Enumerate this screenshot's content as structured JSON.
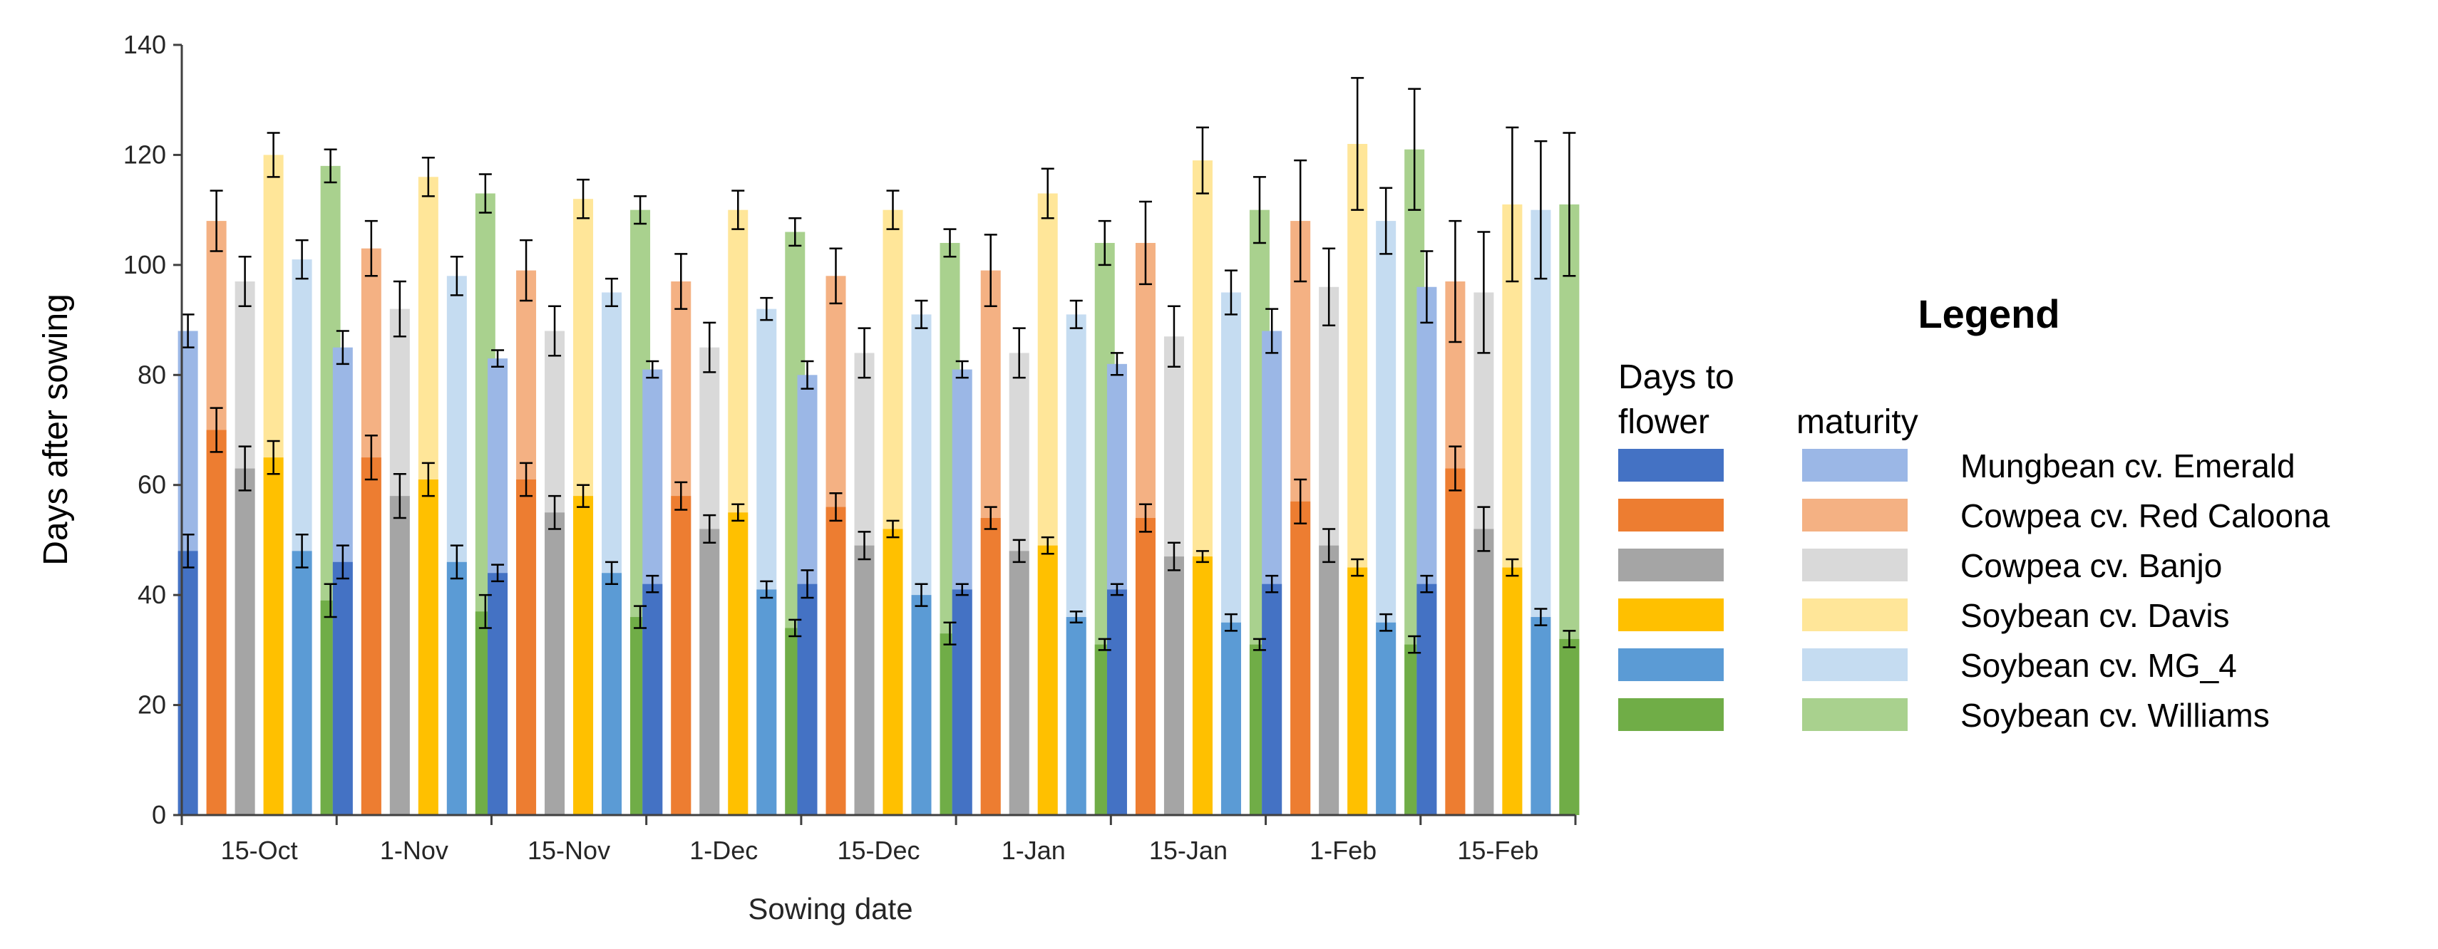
{
  "chart_data": {
    "type": "bar",
    "title": "",
    "xlabel": "Sowing date",
    "ylabel": "Days after sowing",
    "ylim": [
      0,
      140
    ],
    "yticks": [
      "0",
      "20",
      "40",
      "60",
      "80",
      "100",
      "120",
      "140"
    ],
    "categories": [
      "15-Oct",
      "1-Nov",
      "15-Nov",
      "1-Dec",
      "15-Dec",
      "1-Jan",
      "15-Jan",
      "1-Feb",
      "15-Feb"
    ],
    "legend": {
      "title": "Legend",
      "flower_header_line1": "Days to",
      "flower_header_line2": "flower",
      "maturity_header": "maturity",
      "placement": "right"
    },
    "series": [
      {
        "name": "Mungbean cv. Emerald",
        "flower_color": "#4472C4",
        "maturity_color": "#9BB7E6",
        "flower": [
          48,
          46,
          44,
          42,
          42,
          41,
          41,
          42,
          42
        ],
        "flower_err": [
          3,
          3,
          1.5,
          1.5,
          2.5,
          1,
          1,
          1.5,
          1.5
        ],
        "maturity": [
          88,
          85,
          83,
          81,
          80,
          81,
          82,
          88,
          96
        ],
        "maturity_err": [
          3,
          3,
          1.5,
          1.5,
          2.5,
          1.5,
          2,
          4,
          6.5
        ]
      },
      {
        "name": "Cowpea cv. Red Caloona",
        "flower_color": "#ED7D31",
        "maturity_color": "#F4B183",
        "flower": [
          70,
          65,
          61,
          58,
          56,
          54,
          54,
          57,
          63
        ],
        "flower_err": [
          4,
          4,
          3,
          2.5,
          2.5,
          2,
          2.5,
          4,
          4
        ],
        "maturity": [
          108,
          103,
          99,
          97,
          98,
          99,
          104,
          108,
          97
        ],
        "maturity_err": [
          5.5,
          5,
          5.5,
          5,
          5,
          6.5,
          7.5,
          11,
          11
        ]
      },
      {
        "name": "Cowpea cv. Banjo",
        "flower_color": "#A5A5A5",
        "maturity_color": "#D9D9D9",
        "flower": [
          63,
          58,
          55,
          52,
          49,
          48,
          47,
          49,
          52
        ],
        "flower_err": [
          4,
          4,
          3,
          2.5,
          2.5,
          2,
          2.5,
          3,
          4
        ],
        "maturity": [
          97,
          92,
          88,
          85,
          84,
          84,
          87,
          96,
          95
        ],
        "maturity_err": [
          4.5,
          5,
          4.5,
          4.5,
          4.5,
          4.5,
          5.5,
          7,
          11
        ]
      },
      {
        "name": "Soybean cv. Davis",
        "flower_color": "#FFC000",
        "maturity_color": "#FFE699",
        "flower": [
          65,
          61,
          58,
          55,
          52,
          49,
          47,
          45,
          45
        ],
        "flower_err": [
          3,
          3,
          2,
          1.5,
          1.5,
          1.5,
          1,
          1.5,
          1.5
        ],
        "maturity": [
          120,
          116,
          112,
          110,
          110,
          113,
          119,
          122,
          111
        ],
        "maturity_err": [
          4,
          3.5,
          3.5,
          3.5,
          3.5,
          4.5,
          6,
          12,
          14
        ]
      },
      {
        "name": "Soybean cv. MG_4",
        "flower_color": "#5B9BD5",
        "maturity_color": "#C5DCF1",
        "flower": [
          48,
          46,
          44,
          41,
          40,
          36,
          35,
          35,
          36
        ],
        "flower_err": [
          3,
          3,
          2,
          1.5,
          2,
          1,
          1.5,
          1.5,
          1.5
        ],
        "maturity": [
          101,
          98,
          95,
          92,
          91,
          91,
          95,
          108,
          110
        ],
        "maturity_err": [
          3.5,
          3.5,
          2.5,
          2,
          2.5,
          2.5,
          4,
          6,
          12.5
        ]
      },
      {
        "name": "Soybean cv. Williams",
        "flower_color": "#70AD47",
        "maturity_color": "#A9D18E",
        "flower": [
          39,
          37,
          36,
          34,
          33,
          31,
          31,
          31,
          32
        ],
        "flower_err": [
          3,
          3,
          2,
          1.5,
          2,
          1,
          1,
          1.5,
          1.5
        ],
        "maturity": [
          118,
          113,
          110,
          106,
          104,
          104,
          110,
          121,
          111
        ],
        "maturity_err": [
          3,
          3.5,
          2.5,
          2.5,
          2.5,
          4,
          6,
          11,
          13
        ]
      }
    ]
  }
}
